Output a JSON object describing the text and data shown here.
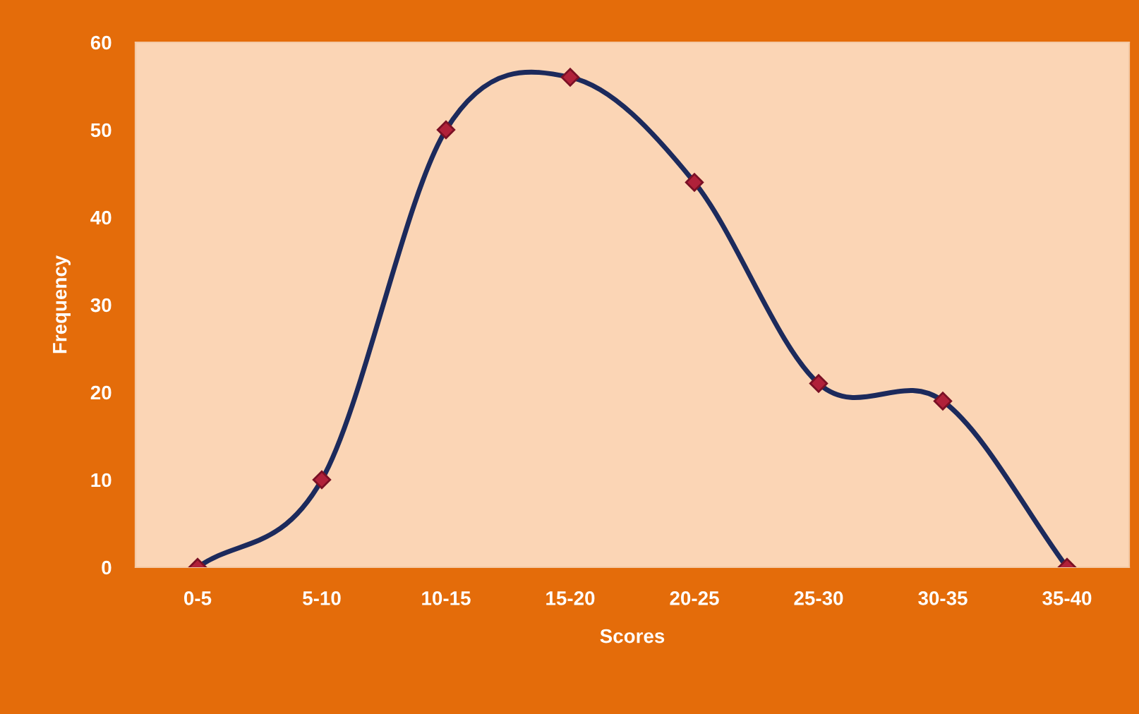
{
  "chart_data": {
    "type": "line",
    "xlabel": "Scores",
    "ylabel": "Frequency",
    "categories": [
      "0-5",
      "5-10",
      "10-15",
      "15-20",
      "20-25",
      "25-30",
      "30-35",
      "35-40"
    ],
    "series": [
      {
        "color": "#1c2a5c",
        "values": [
          0,
          10,
          50,
          56,
          44,
          21,
          19,
          0
        ]
      }
    ],
    "marker": "diamond",
    "line_style": "solid",
    "ylim": [
      0,
      60
    ],
    "yticks": [
      0,
      10,
      20,
      30,
      40,
      50,
      60
    ],
    "grid": false,
    "legend": false
  }
}
